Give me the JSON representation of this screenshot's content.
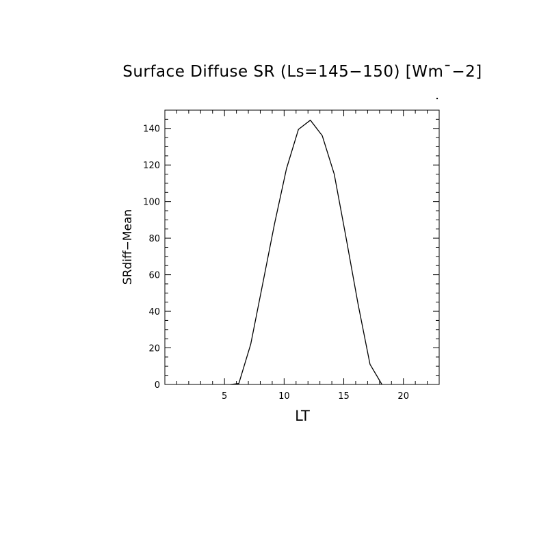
{
  "chart_data": {
    "type": "line",
    "title": "Surface Diffuse SR (Ls=145−150) [Wm¯−2]",
    "xlabel": "LT",
    "ylabel": "SRdiff−Mean",
    "xlim": [
      0,
      23
    ],
    "ylim": [
      0,
      150
    ],
    "x_ticks": [
      5,
      10,
      15,
      20
    ],
    "x_tick_labels": [
      "5",
      "10",
      "15",
      "20"
    ],
    "y_ticks": [
      0,
      20,
      40,
      60,
      80,
      100,
      120,
      140
    ],
    "y_tick_labels": [
      "0",
      "20",
      "40",
      "60",
      "80",
      "100",
      "120",
      "140"
    ],
    "x_minor_step": 1,
    "y_minor_step": 5,
    "grid": false,
    "series": [
      {
        "x": [
          5.5,
          6.2,
          7.2,
          8.2,
          9.2,
          10.2,
          11.2,
          12.2,
          13.2,
          14.2,
          15.2,
          16.2,
          17.2,
          18.2
        ],
        "values": [
          0,
          0.5,
          22,
          55,
          88,
          118,
          139.5,
          144.5,
          136,
          115,
          80,
          44,
          11,
          0
        ]
      }
    ]
  }
}
